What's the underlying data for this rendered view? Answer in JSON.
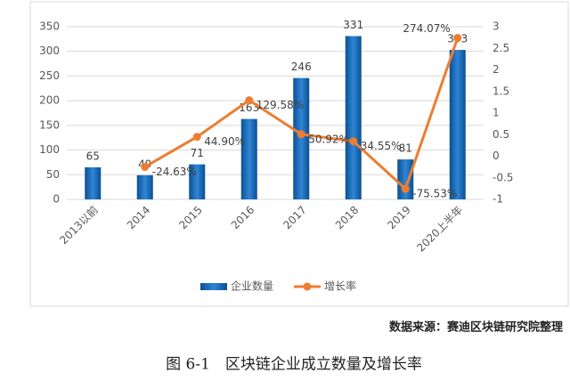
{
  "chart_data": {
    "type": "bar-line",
    "categories": [
      "2013以前",
      "2014",
      "2015",
      "2016",
      "2017",
      "2018",
      "2019",
      "2020上半年"
    ],
    "series": [
      {
        "name": "企业数量",
        "type": "bar",
        "color": "#1f6fc0",
        "values": [
          65,
          49,
          71,
          163,
          246,
          331,
          81,
          303
        ]
      },
      {
        "name": "增长率",
        "type": "line",
        "axis": "y2",
        "color": "#ed7d31",
        "values": [
          null,
          -0.2463,
          0.449,
          1.2958,
          0.5092,
          0.3455,
          -0.7553,
          2.7407
        ],
        "value_labels": [
          null,
          "-24.63%",
          "44.90%",
          "129.58%",
          "50.92%",
          "34.55%",
          "-75.53%",
          "274.07%"
        ]
      }
    ],
    "ylim": [
      0,
      350
    ],
    "yticks": [
      0,
      50,
      100,
      150,
      200,
      250,
      300,
      350
    ],
    "y2lim": [
      -1,
      3
    ],
    "y2ticks": [
      -1,
      -0.5,
      0,
      0.5,
      1,
      1.5,
      2,
      2.5,
      3
    ],
    "grid": true,
    "source": "数据来源：赛迪区块链研究院整理",
    "caption": "图 6-1　区块链企业成立数量及增长率"
  }
}
